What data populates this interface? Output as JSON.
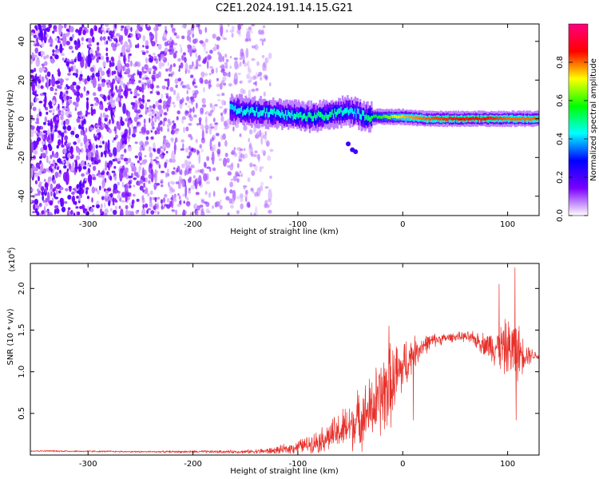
{
  "figure": {
    "title": "C2E1.2024.191.14.15.G21"
  },
  "chart_data": [
    {
      "type": "heatmap",
      "xlabel": "Height of straight line (km)",
      "ylabel": "Frequency (Hz)",
      "xlim": [
        -355,
        130
      ],
      "ylim": [
        -50,
        49
      ],
      "x_ticks": [
        "-300",
        "-200",
        "-100",
        "0",
        "100"
      ],
      "x_tick_values": [
        -300,
        -200,
        -100,
        0,
        100
      ],
      "y_ticks": [
        "40",
        "20",
        "0",
        "-20",
        "-40"
      ],
      "y_tick_values": [
        40,
        20,
        0,
        -20,
        -40
      ],
      "colorbar": {
        "label": "Normalized spectral amplitude",
        "range": [
          0,
          1
        ],
        "ticks": [
          "0.0",
          "0.2",
          "0.4",
          "0.6",
          "0.8"
        ],
        "tick_values": [
          0.0,
          0.2,
          0.4,
          0.6,
          0.8
        ],
        "colormap": [
          "#ffffff",
          "#7a00ff",
          "#0000ff",
          "#00ffff",
          "#00ff00",
          "#ffff00",
          "#ff0000",
          "#ff0080"
        ]
      },
      "noise_region": {
        "x_from": -355,
        "x_to": -125
      },
      "signal_trace": {
        "x": [
          -165,
          -150,
          -130,
          -110,
          -90,
          -70,
          -55,
          -45,
          -35,
          -20,
          0,
          20,
          50,
          80,
          100,
          128
        ],
        "freq": [
          5,
          4,
          3,
          2,
          1,
          2,
          4,
          3,
          1,
          1,
          1,
          0,
          0,
          0,
          0,
          0
        ],
        "amplitude": [
          0.4,
          0.45,
          0.45,
          0.45,
          0.5,
          0.5,
          0.45,
          0.4,
          0.5,
          0.6,
          0.75,
          0.8,
          0.85,
          0.85,
          0.8,
          0.8
        ]
      },
      "secondary_trace": {
        "x": [
          -52,
          -48,
          -45
        ],
        "freq": [
          -13,
          -16,
          -17
        ]
      }
    },
    {
      "type": "line",
      "xlabel": "Height of straight line (km)",
      "ylabel": "SNR (10 * v/v)",
      "y_multiplier": "(x10",
      "y_multiplier_exp": "4",
      "y_multiplier_close": ")",
      "xlim": [
        -355,
        130
      ],
      "ylim": [
        0,
        2.3
      ],
      "x_ticks": [
        "-300",
        "-200",
        "-100",
        "0",
        "100"
      ],
      "x_tick_values": [
        -300,
        -200,
        -100,
        0,
        100
      ],
      "y_ticks": [
        "0.5",
        "1.0",
        "1.5",
        "2.0"
      ],
      "y_tick_values": [
        0.5,
        1.0,
        1.5,
        2.0
      ],
      "line_color": "#e8302a",
      "x": [
        -355,
        -250,
        -150,
        -125,
        -110,
        -100,
        -90,
        -80,
        -70,
        -60,
        -50,
        -40,
        -30,
        -20,
        -15,
        -10,
        -5,
        0,
        10,
        20,
        30,
        40,
        50,
        60,
        70,
        80,
        90,
        100,
        108,
        115,
        125,
        130
      ],
      "y": [
        0.05,
        0.04,
        0.04,
        0.05,
        0.07,
        0.1,
        0.13,
        0.17,
        0.22,
        0.28,
        0.35,
        0.45,
        0.55,
        0.7,
        0.8,
        0.85,
        0.95,
        1.05,
        1.22,
        1.32,
        1.38,
        1.4,
        1.42,
        1.42,
        1.38,
        1.32,
        1.3,
        1.28,
        1.25,
        1.22,
        1.2,
        1.18
      ],
      "spread": [
        0.01,
        0.01,
        0.02,
        0.04,
        0.06,
        0.08,
        0.1,
        0.14,
        0.18,
        0.24,
        0.3,
        0.35,
        0.4,
        0.5,
        0.55,
        0.45,
        0.4,
        0.35,
        0.2,
        0.12,
        0.08,
        0.06,
        0.05,
        0.06,
        0.1,
        0.15,
        0.25,
        0.35,
        0.4,
        0.2,
        0.06,
        0.04
      ],
      "spikes": [
        {
          "x": -13,
          "y": 1.55
        },
        {
          "x": -6,
          "y": 1.3
        },
        {
          "x": 10,
          "y": 0.42
        },
        {
          "x": 92,
          "y": 2.05
        },
        {
          "x": 107,
          "y": 2.25
        },
        {
          "x": 108,
          "y": 0.42
        }
      ]
    }
  ]
}
